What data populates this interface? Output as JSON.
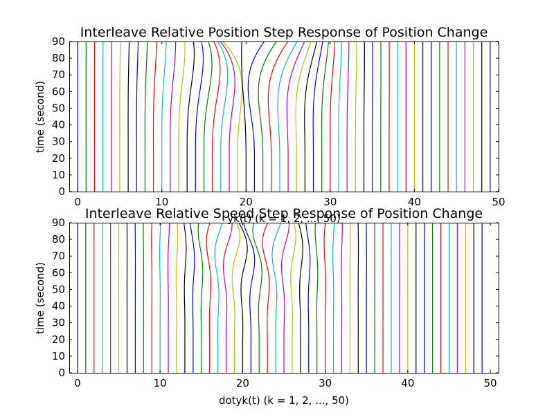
{
  "chart_data": [
    {
      "type": "line",
      "title": "Interleave Relative Position Step Response of Position Change",
      "xlabel": "yk(t) (k = 1, 2, ..., 50)",
      "ylabel": "time (second)",
      "xlim": [
        -1,
        50
      ],
      "ylim": [
        0,
        90
      ],
      "xticks": [
        0,
        10,
        20,
        30,
        40,
        50
      ],
      "yticks": [
        0,
        10,
        20,
        30,
        40,
        50,
        60,
        70,
        80,
        90
      ],
      "grid": false,
      "color_cycle": [
        "#0000ff",
        "#008000",
        "#ff0000",
        "#00bfbf",
        "#bf00bf",
        "#bfbf00",
        "#000000"
      ],
      "n_series": 50,
      "series_desc": "50 vertical lines at x = k - 1 (k = 1..50); lines near x = 20 bulge left and right as time approaches 90 s",
      "series_x0": [
        0,
        1,
        2,
        3,
        4,
        5,
        6,
        7,
        8,
        9,
        10,
        11,
        12,
        13,
        14,
        15,
        16,
        17,
        18,
        19,
        20,
        21,
        22,
        23,
        24,
        25,
        26,
        27,
        28,
        29,
        30,
        31,
        32,
        33,
        34,
        35,
        36,
        37,
        38,
        39,
        40,
        41,
        42,
        43,
        44,
        45,
        46,
        47,
        48,
        49
      ],
      "peak_deviation_center": 20,
      "peak_time": 87
    },
    {
      "type": "line",
      "title": "Interleave Relative Speed Step Response of Position Change",
      "xlabel": "dotyk(t) (k = 1, 2, ..., 50)",
      "ylabel": "time (second)",
      "xlim": [
        -1,
        51
      ],
      "ylim": [
        0,
        90
      ],
      "xticks": [
        0,
        10,
        20,
        30,
        40,
        50
      ],
      "yticks": [
        0,
        10,
        20,
        30,
        40,
        50,
        60,
        70,
        80,
        90
      ],
      "grid": false,
      "color_cycle": [
        "#0000ff",
        "#008000",
        "#ff0000",
        "#00bfbf",
        "#bf00bf",
        "#bfbf00",
        "#000000"
      ],
      "n_series": 50,
      "series_desc": "50 near-vertical lines at x = k - 1 (k = 1..50); lines between x = 12 and 30 wiggle near the top",
      "series_x0": [
        0,
        1,
        2,
        3,
        4,
        5,
        6,
        7,
        8,
        9,
        10,
        11,
        12,
        13,
        14,
        15,
        16,
        17,
        18,
        19,
        20,
        21,
        22,
        23,
        24,
        25,
        26,
        27,
        28,
        29,
        30,
        31,
        32,
        33,
        34,
        35,
        36,
        37,
        38,
        39,
        40,
        41,
        42,
        43,
        44,
        45,
        46,
        47,
        48,
        49
      ],
      "peak_deviation_center": 21,
      "peak_time": 82
    }
  ]
}
